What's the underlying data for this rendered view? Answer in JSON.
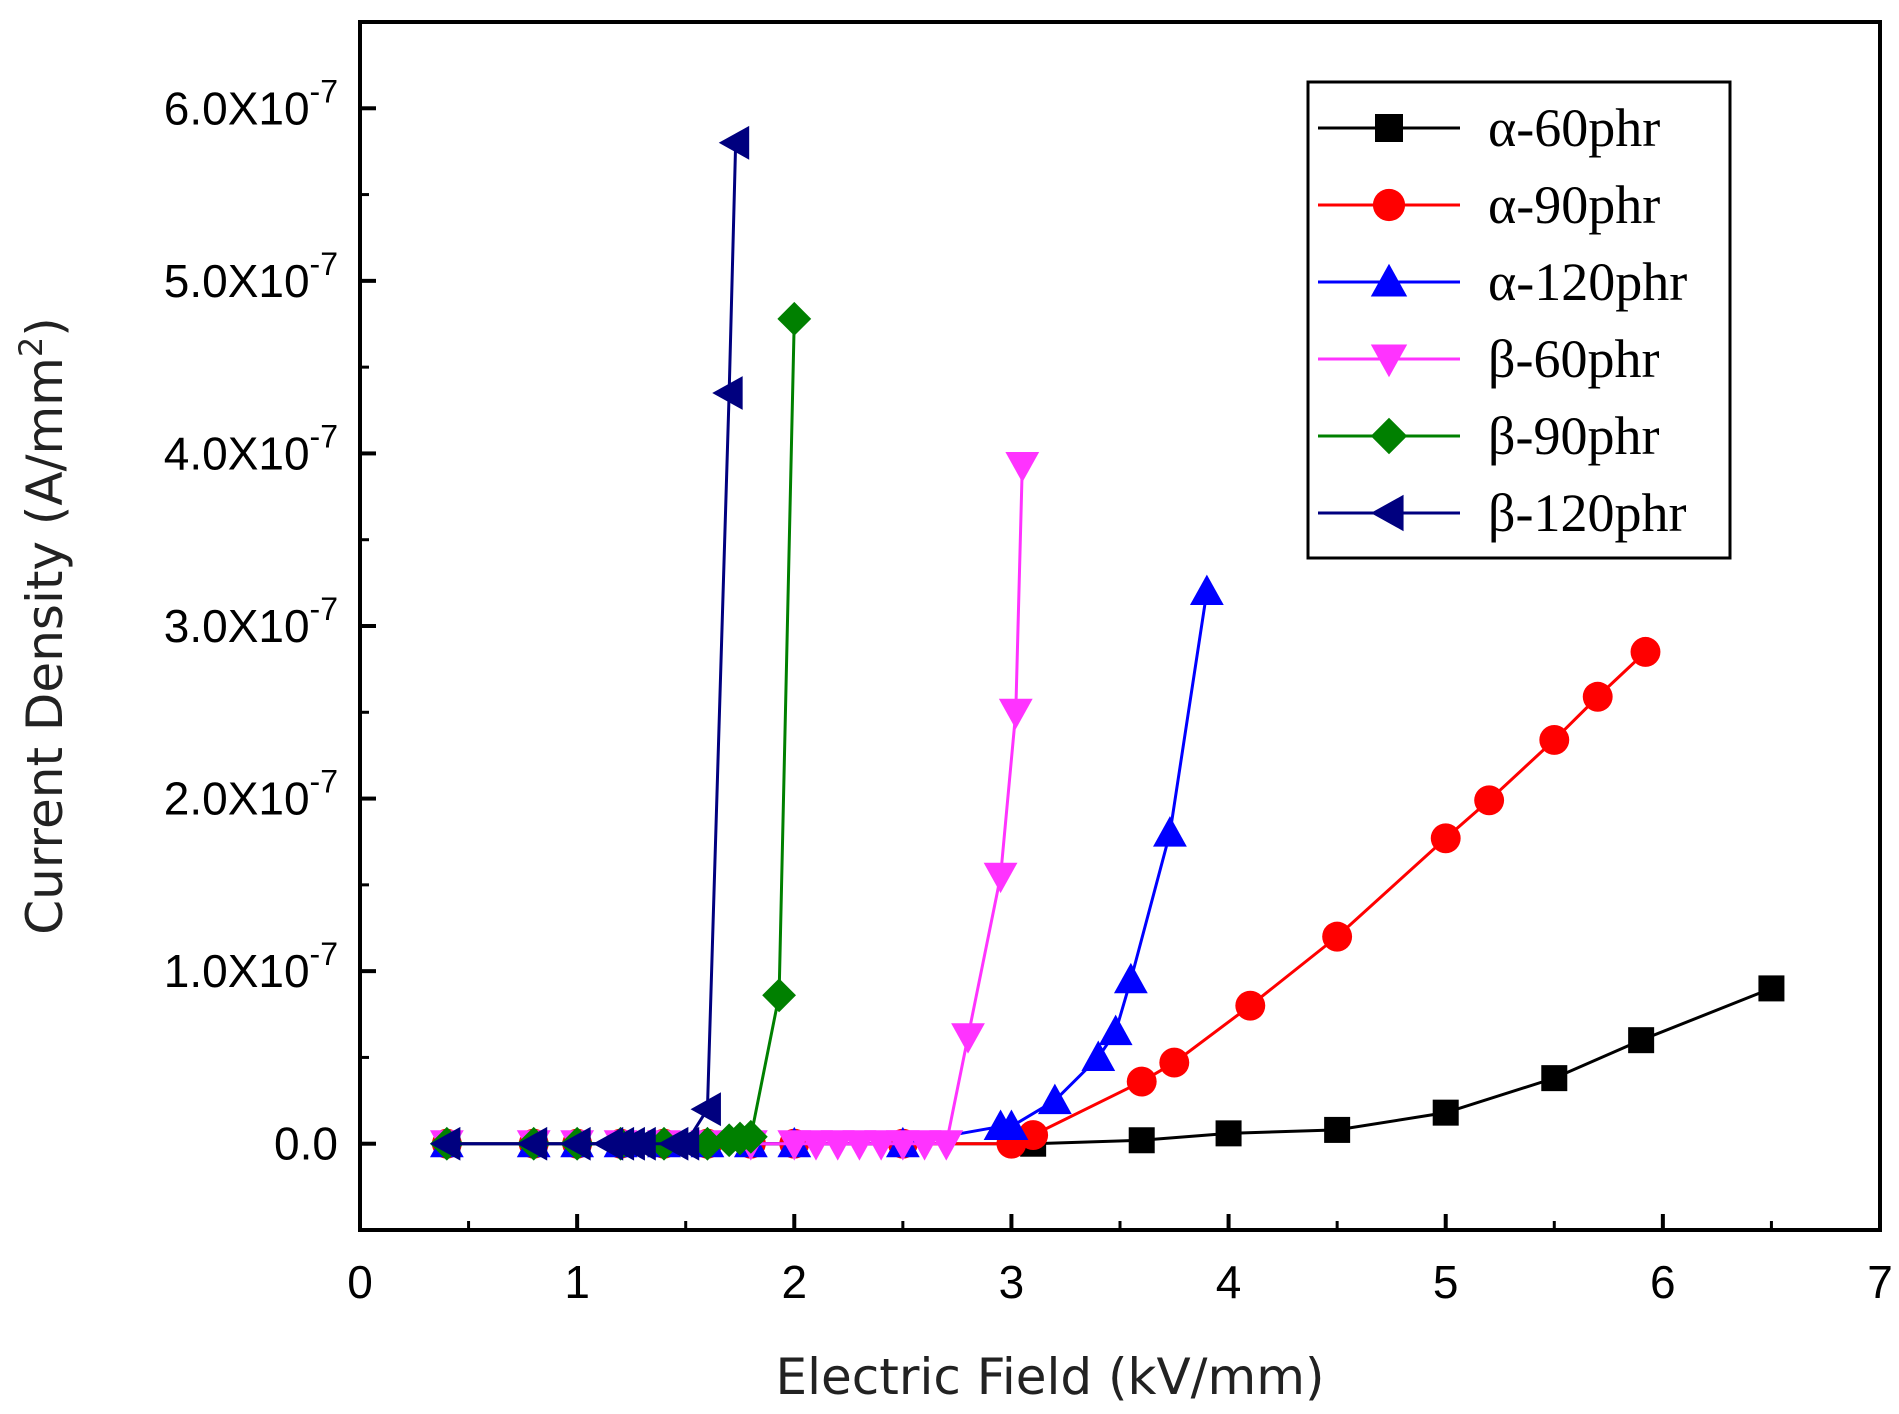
{
  "chart_data": {
    "type": "line",
    "title": "",
    "xlabel": "Electric Field (kV/mm)",
    "ylabel": "Current Density (A/mm²)",
    "ylabel_parts": {
      "main": "Current Density (A/mm",
      "sup": "2",
      "end": ")"
    },
    "xlim": [
      0,
      7
    ],
    "ylim": [
      -0.5,
      6.5
    ],
    "y_multiplier": "1e-7",
    "x_ticks": [
      0,
      1,
      2,
      3,
      4,
      5,
      6,
      7
    ],
    "x_tick_labels": [
      "0",
      "1",
      "2",
      "3",
      "4",
      "5",
      "6",
      "7"
    ],
    "y_ticks": [
      0,
      1,
      2,
      3,
      4,
      5,
      6
    ],
    "y_tick_labels": [
      {
        "value": 0,
        "base": "0.0",
        "exp": ""
      },
      {
        "value": 1,
        "base": "1.0X10",
        "exp": "-7"
      },
      {
        "value": 2,
        "base": "2.0X10",
        "exp": "-7"
      },
      {
        "value": 3,
        "base": "3.0X10",
        "exp": "-7"
      },
      {
        "value": 4,
        "base": "4.0X10",
        "exp": "-7"
      },
      {
        "value": 5,
        "base": "5.0X10",
        "exp": "-7"
      },
      {
        "value": 6,
        "base": "6.0X10",
        "exp": "-7"
      }
    ],
    "grid": false,
    "legend_position": "top-right",
    "series": [
      {
        "name": "α-60phr",
        "color": "#000000",
        "marker": "square",
        "x": [
          0.4,
          0.8,
          1.0,
          1.2,
          1.4,
          1.6,
          1.8,
          2.0,
          2.5,
          3.1,
          3.6,
          4.0,
          4.5,
          5.0,
          5.5,
          5.9,
          6.5
        ],
        "y": [
          0,
          0,
          0,
          0,
          0,
          0,
          0,
          0,
          0,
          0,
          0.02,
          0.06,
          0.08,
          0.18,
          0.38,
          0.6,
          0.9
        ]
      },
      {
        "name": "α-90phr",
        "color": "#ff0000",
        "marker": "circle",
        "x": [
          0.4,
          0.8,
          1.0,
          1.2,
          1.4,
          1.6,
          1.8,
          2.0,
          2.5,
          3.0,
          3.1,
          3.6,
          3.75,
          4.1,
          4.5,
          5.0,
          5.2,
          5.5,
          5.7,
          5.92
        ],
        "y": [
          0,
          0,
          0,
          0,
          0,
          0,
          0,
          0,
          0,
          0,
          0.05,
          0.36,
          0.47,
          0.8,
          1.2,
          1.77,
          1.99,
          2.34,
          2.59,
          2.85
        ]
      },
      {
        "name": "α-120phr",
        "color": "#0000ff",
        "marker": "triangle-up",
        "x": [
          0.4,
          0.8,
          1.0,
          1.2,
          1.4,
          1.6,
          1.8,
          2.0,
          2.5,
          2.95,
          3.0,
          3.2,
          3.4,
          3.48,
          3.55,
          3.73,
          3.9
        ],
        "y": [
          0,
          0,
          0,
          0,
          0,
          0,
          0,
          0,
          0,
          0.1,
          0.1,
          0.25,
          0.5,
          0.65,
          0.95,
          1.8,
          3.2
        ]
      },
      {
        "name": "β-60phr",
        "color": "#ff33ff",
        "marker": "triangle-down",
        "x": [
          0.4,
          0.8,
          1.0,
          1.2,
          1.4,
          1.6,
          1.8,
          2.0,
          2.1,
          2.2,
          2.3,
          2.4,
          2.5,
          2.6,
          2.7,
          2.8,
          2.95,
          3.02,
          3.05
        ],
        "y": [
          0,
          0,
          0,
          0,
          0,
          0,
          0,
          0,
          0,
          0,
          0,
          0,
          0,
          0,
          0,
          0.62,
          1.55,
          2.5,
          3.93
        ]
      },
      {
        "name": "β-90phr",
        "color": "#008000",
        "marker": "diamond",
        "x": [
          0.4,
          0.8,
          1.0,
          1.2,
          1.4,
          1.6,
          1.7,
          1.75,
          1.8,
          1.93,
          2.0
        ],
        "y": [
          0,
          0,
          0,
          0,
          0,
          0,
          0.02,
          0.03,
          0.04,
          0.86,
          4.78
        ]
      },
      {
        "name": "β-120phr",
        "color": "#00007f",
        "marker": "triangle-left",
        "x": [
          0.4,
          0.8,
          1.0,
          1.15,
          1.2,
          1.25,
          1.3,
          1.45,
          1.5,
          1.6,
          1.7,
          1.73
        ],
        "y": [
          0,
          0,
          0,
          0,
          0,
          0,
          0,
          0,
          0,
          0.2,
          4.35,
          5.8
        ]
      }
    ]
  }
}
